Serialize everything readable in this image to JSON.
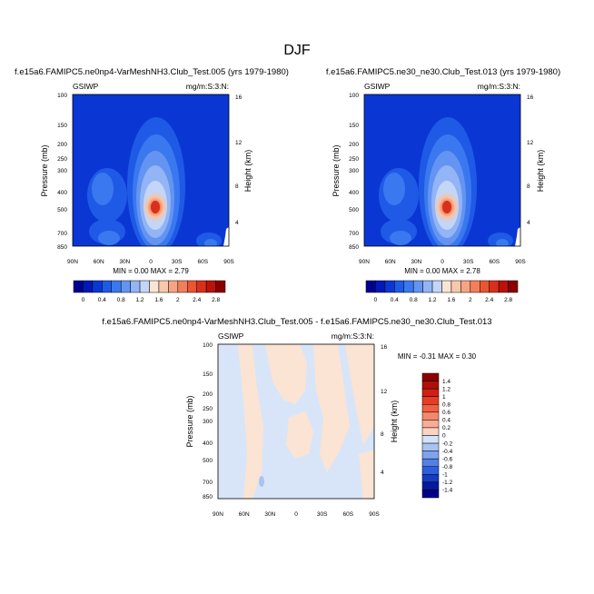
{
  "figure": {
    "title": "DJF"
  },
  "chart_data": [
    {
      "type": "heatmap",
      "id": "p1",
      "title": "f.e15a6.FAMIPC5.ne0np4-VarMeshNH3.Club_Test.005 (yrs 1979-1980)",
      "left_label": "GSIWP",
      "right_label": "mg/m:S:3:N:",
      "ylabel": "Pressure (mb)",
      "ylabel_right": "Height (km)",
      "x_ticks": [
        "90N",
        "60N",
        "30N",
        "0",
        "30S",
        "60S",
        "90S"
      ],
      "y_ticks": [
        "100",
        "150",
        "200",
        "250",
        "300",
        "400",
        "500",
        "700",
        "850"
      ],
      "y_right_ticks": [
        "16",
        "12",
        "8",
        "4"
      ],
      "min_max": "MIN =   0.00   MAX =   2.79",
      "min": 0.0,
      "max": 2.79
    },
    {
      "type": "heatmap",
      "id": "p2",
      "title": "f.e15a6.FAMIPC5.ne30_ne30.Club_Test.013 (yrs 1979-1980)",
      "left_label": "GSIWP",
      "right_label": "mg/m:S:3:N:",
      "ylabel": "Pressure (mb)",
      "ylabel_right": "Height (km)",
      "x_ticks": [
        "90N",
        "60N",
        "30N",
        "0",
        "30S",
        "60S",
        "90S"
      ],
      "y_ticks": [
        "100",
        "150",
        "200",
        "250",
        "300",
        "400",
        "500",
        "700",
        "850"
      ],
      "y_right_ticks": [
        "16",
        "12",
        "8",
        "4"
      ],
      "min_max": "MIN =   0.00   MAX =   2.78",
      "min": 0.0,
      "max": 2.78
    },
    {
      "type": "heatmap",
      "id": "p3",
      "title": "f.e15a6.FAMIPC5.ne0np4-VarMeshNH3.Club_Test.005 - f.e15a6.FAMIPC5.ne30_ne30.Club_Test.013",
      "left_label": "GSIWP",
      "right_label": "mg/m:S:3:N:",
      "ylabel": "Pressure (mb)",
      "ylabel_right": "Height (km)",
      "x_ticks": [
        "90N",
        "60N",
        "30N",
        "0",
        "30S",
        "60S",
        "90S"
      ],
      "y_ticks": [
        "100",
        "150",
        "200",
        "250",
        "300",
        "400",
        "500",
        "700",
        "850"
      ],
      "y_right_ticks": [
        "16",
        "12",
        "8",
        "4"
      ],
      "min_max": "MIN =  -0.31   MAX =   0.30",
      "min": -0.31,
      "max": 0.3
    }
  ],
  "colorbar_top": {
    "labels": [
      "0",
      "0.4",
      "0.8",
      "1.2",
      "1.6",
      "2",
      "2.4",
      "2.8"
    ],
    "colors": [
      "#00008f",
      "#0019b8",
      "#0a37d4",
      "#1f5ae6",
      "#3a78ef",
      "#6494f2",
      "#93b4f5",
      "#c3d6f8",
      "#fbe4d4",
      "#f8c8ac",
      "#f6a584",
      "#f27f5b",
      "#ea5533",
      "#d9301b",
      "#bb130c",
      "#8a0000"
    ]
  },
  "colorbar_diff": {
    "labels": [
      "1.4",
      "1.2",
      "1",
      "0.8",
      "0.6",
      "0.4",
      "0.2",
      "0",
      "-0.2",
      "-0.4",
      "-0.6",
      "-0.8",
      "-1",
      "-1.2",
      "-1.4"
    ],
    "colors": [
      "#8a0000",
      "#b00e08",
      "#d0200f",
      "#e63d22",
      "#f06040",
      "#f5876b",
      "#f8ad96",
      "#fbd3c2",
      "#d4e3f7",
      "#a9c4f2",
      "#7fa3ec",
      "#5380e6",
      "#2c5edd",
      "#133bc4",
      "#021a9c",
      "#00008a"
    ]
  }
}
